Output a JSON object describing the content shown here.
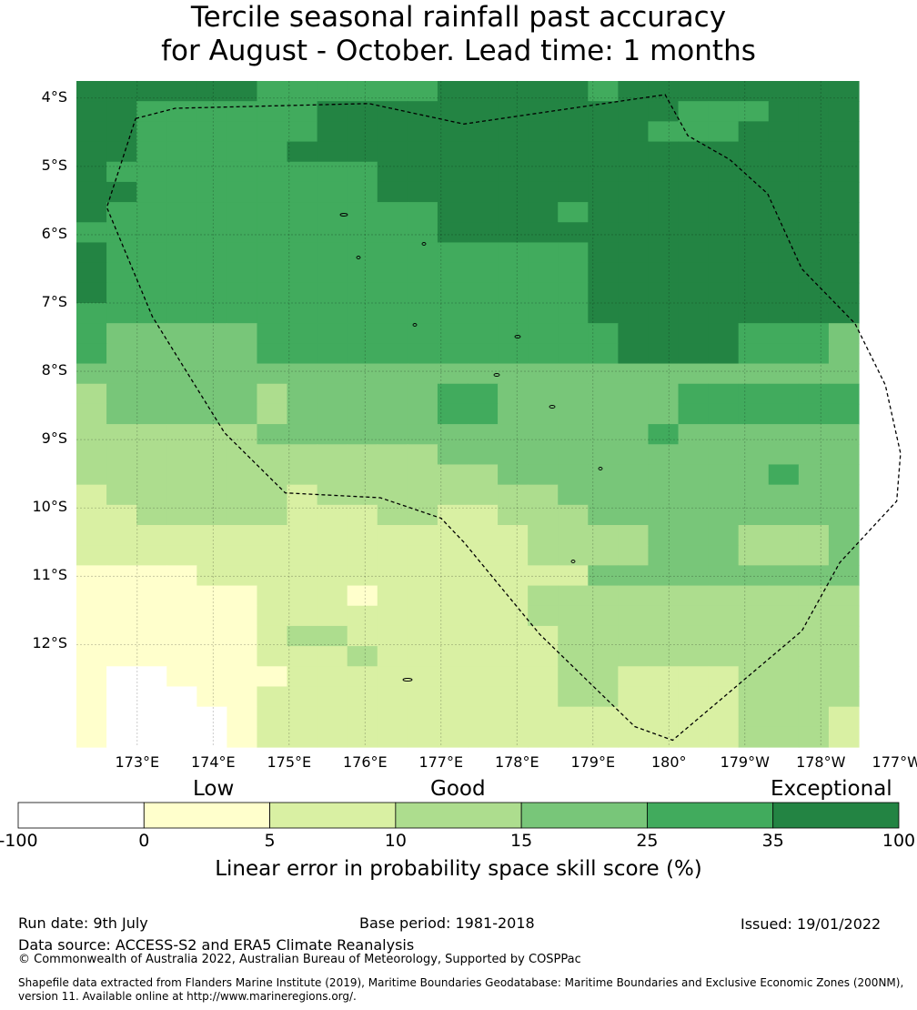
{
  "title_line1": "Tercile seasonal rainfall past accuracy",
  "title_line2": "for August - October. Lead time: 1 months",
  "map": {
    "lon_range": [
      172.2,
      182.5
    ],
    "lat_range": [
      -13.5,
      -3.75
    ],
    "x_ticks": [
      {
        "lon": 173,
        "label": "173°E"
      },
      {
        "lon": 174,
        "label": "174°E"
      },
      {
        "lon": 175,
        "label": "175°E"
      },
      {
        "lon": 176,
        "label": "176°E"
      },
      {
        "lon": 177,
        "label": "177°E"
      },
      {
        "lon": 178,
        "label": "178°E"
      },
      {
        "lon": 179,
        "label": "179°E"
      },
      {
        "lon": 180,
        "label": "180°"
      },
      {
        "lon": 181,
        "label": "179°W"
      },
      {
        "lon": 182,
        "label": "178°W"
      },
      {
        "lon": 183,
        "label": "177°W"
      }
    ],
    "y_ticks": [
      {
        "lat": -4,
        "label": "4°S"
      },
      {
        "lat": -5,
        "label": "5°S"
      },
      {
        "lat": -6,
        "label": "6°S"
      },
      {
        "lat": -7,
        "label": "7°S"
      },
      {
        "lat": -8,
        "label": "8°S"
      },
      {
        "lat": -9,
        "label": "9°S"
      },
      {
        "lat": -10,
        "label": "10°S"
      },
      {
        "lat": -11,
        "label": "11°S"
      },
      {
        "lat": -12,
        "label": "12°S"
      }
    ],
    "grid_cols_lon_edges_note": "",
    "levels": [
      "#ffffff",
      "#ffffcc",
      "#d9f0a3",
      "#addd8e",
      "#78c679",
      "#41ab5d",
      "#238443"
    ],
    "grid": [
      "66666655555566666566666666",
      "66555555666666666666555666",
      "66555555666666666665556666",
      "66555556666666666666666666",
      "65555555556666666666666666",
      "66555555556666666666666666",
      "65555555555566665666666666",
      "55555555555566666666666666",
      "65555555555555555666666666",
      "65555555555555555666666666",
      "65555555555555555666666666",
      "55555555555555555666666666",
      "54444455555555555566665554",
      "54444455555555555566665554",
      "44444444444444444444444444",
      "34444434444455444444555555",
      "34444434444455444444555555",
      "33333344444444444445444444",
      "33333333333344444444444444",
      "33333333333333444444444544",
      "23333332333333334444444444",
      "22333332223322333444444444",
      "22222222222222233334443334",
      "22222222222222233334443334",
      "11112222222222222444444444",
      "11111122212222233333333333",
      "11111122222222233333333333",
      "11111123322222223333333333",
      "11111122232222223333333333",
      "10011112222222223322223333",
      "10001122222222223322223333",
      "10000122222222222222223332",
      "10000122222222222222223332"
    ],
    "grid_spec": "",
    "eez_boundary": [
      [
        172.98,
        -4.3
      ],
      [
        173.5,
        -4.15
      ],
      [
        176.05,
        -4.08
      ],
      [
        177.3,
        -4.38
      ],
      [
        179.95,
        -3.95
      ],
      [
        180.25,
        -4.55
      ],
      [
        180.8,
        -4.9
      ],
      [
        181.3,
        -5.4
      ],
      [
        181.75,
        -6.5
      ],
      [
        182.45,
        -7.3
      ],
      [
        182.85,
        -8.2
      ],
      [
        183.05,
        -9.2
      ],
      [
        183.0,
        -9.9
      ],
      [
        182.25,
        -10.8
      ],
      [
        181.75,
        -11.8
      ],
      [
        180.05,
        -13.4
      ],
      [
        179.55,
        -13.2
      ],
      [
        178.3,
        -11.85
      ],
      [
        177.3,
        -10.5
      ],
      [
        177.0,
        -10.15
      ],
      [
        176.2,
        -9.85
      ],
      [
        174.95,
        -9.78
      ],
      [
        174.15,
        -8.9
      ],
      [
        173.2,
        -7.2
      ],
      [
        172.6,
        -5.6
      ],
      [
        172.98,
        -4.3
      ]
    ]
  },
  "categories": {
    "low": "Low",
    "good": "Good",
    "exceptional": "Exceptional"
  },
  "colorbar": {
    "ticks": [
      "-100",
      "0",
      "5",
      "10",
      "15",
      "25",
      "35",
      "100"
    ],
    "colors": [
      "#ffffff",
      "#ffffcc",
      "#d9f0a3",
      "#addd8e",
      "#78c679",
      "#41ab5d",
      "#238443"
    ],
    "label": "Linear error in probability space skill score (%)"
  },
  "footer": {
    "run_date": "Run date: 9th July",
    "base_period": "Base period: 1981-2018",
    "issued": "Issued: 19/01/2022",
    "data_source": "Data source: ACCESS-S2 and ERA5 Climate Reanalysis",
    "copyright": "© Commonwealth of Australia 2022, Australian Bureau of Meteorology, Supported by COSPPac",
    "shapefile_line1": "Shapefile data extracted from Flanders Marine Institute (2019), Maritime Boundaries Geodatabase: Maritime Boundaries and Exclusive Economic Zones (200NM),",
    "shapefile_line2": "version 11. Available online at http://www.marineregions.org/."
  }
}
